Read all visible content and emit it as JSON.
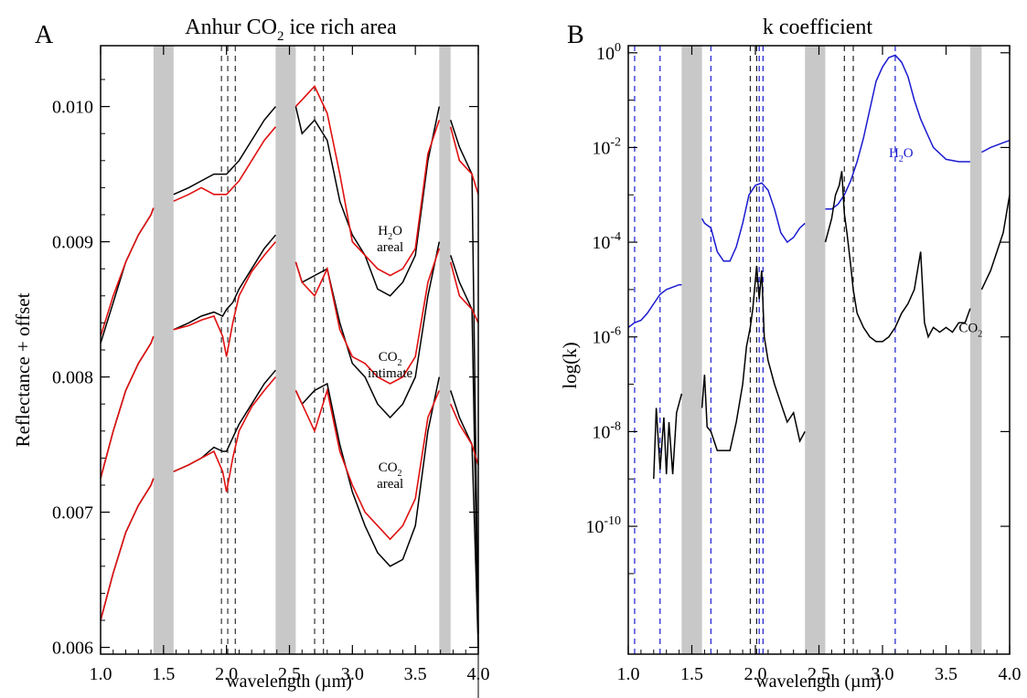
{
  "chart_data": [
    {
      "type": "line",
      "panel_letter": "A",
      "title_main": "Anhur CO",
      "title_sub": "2",
      "title_rest": " ice rich area",
      "xlabel": "wavelength (µm)",
      "ylabel": "Reflectance + offset",
      "xlim": [
        1.0,
        4.0
      ],
      "ylim": [
        0.00595,
        0.01045
      ],
      "xticks": [
        1.0,
        1.5,
        2.0,
        2.5,
        3.0,
        3.5,
        4.0
      ],
      "xtick_labels": [
        "1.0",
        "1.5",
        "2.0",
        "2.5",
        "3.0",
        "3.5",
        "4.0"
      ],
      "yticks": [
        0.006,
        0.007,
        0.008,
        0.009,
        0.01
      ],
      "ytick_labels": [
        "0.006",
        "0.007",
        "0.008",
        "0.009",
        "0.010"
      ],
      "grid": false,
      "masked_bands": [
        [
          1.42,
          1.58
        ],
        [
          2.39,
          2.55
        ],
        [
          3.69,
          3.78
        ]
      ],
      "dashed_lines": [
        1.96,
        2.01,
        2.07,
        2.7,
        2.77
      ],
      "colors": {
        "observed": "#000000",
        "model": "#e01010",
        "band": "#c8c8c8",
        "dashed": "#333333"
      },
      "series": [
        {
          "role": "observed",
          "group": "H2O areal",
          "x": [
            1.0,
            1.1,
            1.2,
            1.3,
            1.4,
            1.42,
            1.58,
            1.7,
            1.8,
            1.9,
            2.0,
            2.1,
            2.2,
            2.3,
            2.39,
            2.55,
            2.6,
            2.7,
            2.8,
            2.9,
            3.0,
            3.1,
            3.2,
            3.3,
            3.4,
            3.5,
            3.6,
            3.69,
            3.78,
            3.85,
            3.95,
            4.0
          ],
          "y": [
            0.00825,
            0.00855,
            0.00885,
            0.00905,
            0.0092,
            0.00925,
            0.00935,
            0.0094,
            0.00945,
            0.0095,
            0.0095,
            0.0096,
            0.00975,
            0.0099,
            0.01,
            0.01,
            0.0098,
            0.0099,
            0.00975,
            0.0093,
            0.00905,
            0.0089,
            0.00865,
            0.0086,
            0.0087,
            0.0089,
            0.0096,
            0.01,
            0.0099,
            0.0097,
            0.0095,
            0.0061
          ]
        },
        {
          "role": "model",
          "group": "H2O areal",
          "x": [
            1.0,
            1.1,
            1.2,
            1.3,
            1.4,
            1.42,
            1.58,
            1.7,
            1.8,
            1.9,
            2.0,
            2.1,
            2.2,
            2.3,
            2.39,
            2.55,
            2.6,
            2.7,
            2.8,
            2.9,
            3.0,
            3.1,
            3.2,
            3.3,
            3.4,
            3.5,
            3.6,
            3.69,
            3.78,
            3.85,
            3.95,
            4.0
          ],
          "y": [
            0.0083,
            0.0086,
            0.00885,
            0.00905,
            0.0092,
            0.00925,
            0.0093,
            0.00935,
            0.0094,
            0.00935,
            0.00935,
            0.00945,
            0.0096,
            0.00975,
            0.00985,
            0.01,
            0.01005,
            0.01015,
            0.00995,
            0.0095,
            0.009,
            0.0089,
            0.0088,
            0.00875,
            0.0088,
            0.00895,
            0.00965,
            0.0099,
            0.00985,
            0.0096,
            0.0095,
            0.00935
          ]
        },
        {
          "role": "observed",
          "group": "CO2 intimate",
          "x": [
            1.0,
            1.1,
            1.2,
            1.3,
            1.4,
            1.42,
            1.58,
            1.7,
            1.8,
            1.9,
            1.97,
            2.0,
            2.05,
            2.1,
            2.2,
            2.3,
            2.39,
            2.55,
            2.6,
            2.7,
            2.8,
            2.9,
            3.0,
            3.1,
            3.2,
            3.3,
            3.4,
            3.5,
            3.6,
            3.69,
            3.78,
            3.85,
            3.95,
            4.0
          ],
          "y": [
            0.00725,
            0.0076,
            0.0079,
            0.0081,
            0.00825,
            0.0083,
            0.00835,
            0.0084,
            0.00845,
            0.00848,
            0.00845,
            0.0085,
            0.00855,
            0.00865,
            0.0088,
            0.00895,
            0.00905,
            0.00885,
            0.0087,
            0.00875,
            0.0088,
            0.0084,
            0.0081,
            0.008,
            0.0078,
            0.0077,
            0.0078,
            0.008,
            0.0086,
            0.009,
            0.0089,
            0.0087,
            0.0085,
            0.006
          ]
        },
        {
          "role": "model",
          "group": "CO2 intimate",
          "x": [
            1.0,
            1.1,
            1.2,
            1.3,
            1.4,
            1.42,
            1.58,
            1.7,
            1.8,
            1.9,
            1.97,
            2.0,
            2.05,
            2.1,
            2.2,
            2.3,
            2.39,
            2.55,
            2.6,
            2.7,
            2.8,
            2.9,
            3.0,
            3.1,
            3.2,
            3.3,
            3.4,
            3.5,
            3.6,
            3.69,
            3.78,
            3.85,
            3.95,
            4.0
          ],
          "y": [
            0.00725,
            0.0076,
            0.0079,
            0.0081,
            0.00825,
            0.0083,
            0.00835,
            0.00838,
            0.00842,
            0.00845,
            0.0083,
            0.00815,
            0.0084,
            0.0086,
            0.00878,
            0.0089,
            0.009,
            0.00885,
            0.0087,
            0.0086,
            0.0088,
            0.00835,
            0.00815,
            0.0081,
            0.008,
            0.00795,
            0.008,
            0.00815,
            0.0087,
            0.00895,
            0.00885,
            0.0086,
            0.0085,
            0.0084
          ]
        },
        {
          "role": "observed",
          "group": "CO2 areal",
          "x": [
            1.0,
            1.1,
            1.2,
            1.3,
            1.4,
            1.42,
            1.58,
            1.7,
            1.8,
            1.9,
            1.97,
            2.0,
            2.05,
            2.1,
            2.2,
            2.3,
            2.39,
            2.55,
            2.6,
            2.7,
            2.8,
            2.9,
            3.0,
            3.1,
            3.2,
            3.3,
            3.4,
            3.5,
            3.6,
            3.69,
            3.78,
            3.85,
            3.95,
            4.0
          ],
          "y": [
            0.0062,
            0.00655,
            0.00685,
            0.00705,
            0.0072,
            0.00725,
            0.0073,
            0.00735,
            0.0074,
            0.00748,
            0.00745,
            0.00745,
            0.00755,
            0.00765,
            0.0078,
            0.00795,
            0.00805,
            0.0079,
            0.0078,
            0.0079,
            0.00795,
            0.0075,
            0.00715,
            0.0069,
            0.0067,
            0.0066,
            0.00665,
            0.0069,
            0.0076,
            0.008,
            0.0079,
            0.0077,
            0.0075,
            0.006
          ]
        },
        {
          "role": "model",
          "group": "CO2 areal",
          "x": [
            1.0,
            1.1,
            1.2,
            1.3,
            1.4,
            1.42,
            1.58,
            1.7,
            1.8,
            1.9,
            1.97,
            2.0,
            2.05,
            2.1,
            2.2,
            2.3,
            2.39,
            2.55,
            2.6,
            2.7,
            2.8,
            2.9,
            3.0,
            3.1,
            3.2,
            3.3,
            3.4,
            3.5,
            3.6,
            3.69,
            3.78,
            3.85,
            3.95,
            4.0
          ],
          "y": [
            0.0062,
            0.00655,
            0.00685,
            0.00705,
            0.0072,
            0.00725,
            0.0073,
            0.00735,
            0.0074,
            0.00745,
            0.0073,
            0.00715,
            0.0074,
            0.0076,
            0.00778,
            0.0079,
            0.008,
            0.0079,
            0.0078,
            0.0076,
            0.0079,
            0.00745,
            0.0072,
            0.007,
            0.0069,
            0.0068,
            0.0069,
            0.0071,
            0.0077,
            0.0079,
            0.0078,
            0.00765,
            0.0075,
            0.00735
          ]
        }
      ],
      "annotations": [
        {
          "main": "H",
          "sub": "2",
          "rest": "O",
          "line2": "areal",
          "x": 3.3,
          "y": 0.00905
        },
        {
          "main": "CO",
          "sub": "2",
          "rest": "",
          "line2": "intimate",
          "x": 3.3,
          "y": 0.00812
        },
        {
          "main": "CO",
          "sub": "2",
          "rest": "",
          "line2": "areal",
          "x": 3.3,
          "y": 0.0073
        }
      ]
    },
    {
      "type": "line",
      "panel_letter": "B",
      "title_main": "k coefficient",
      "xlabel": "wavelength (µm)",
      "ylabel": "log(k)",
      "yscale": "log",
      "xlim": [
        1.0,
        4.0
      ],
      "ylim_log10": [
        -12.7,
        0.15
      ],
      "xticks": [
        1.0,
        1.5,
        2.0,
        2.5,
        3.0,
        3.5,
        4.0
      ],
      "xtick_labels": [
        "1.0",
        "1.5",
        "2.0",
        "2.5",
        "3.0",
        "3.5",
        "4.0"
      ],
      "yticks_log10": [
        -10,
        -8,
        -6,
        -4,
        -2,
        0
      ],
      "ytick_base": "10",
      "ytick_exponents": [
        "-10",
        "-8",
        "-6",
        "-4",
        "-2",
        "0"
      ],
      "grid": false,
      "masked_bands": [
        [
          1.42,
          1.58
        ],
        [
          2.39,
          2.55
        ],
        [
          3.69,
          3.78
        ]
      ],
      "dashed_lines_blue": [
        1.05,
        1.25,
        1.65,
        2.03,
        2.06,
        3.1
      ],
      "dashed_lines_black": [
        1.96,
        2.01,
        2.7,
        2.77
      ],
      "colors": {
        "h2o": "#1a1ad0",
        "co2": "#000000",
        "band": "#c8c8c8"
      },
      "series": [
        {
          "name_main": "H",
          "name_sub": "2",
          "name_rest": "O",
          "label_x": 3.05,
          "label_log10k": -2.2,
          "color": "#1a1ad0",
          "x": [
            1.0,
            1.05,
            1.1,
            1.15,
            1.2,
            1.25,
            1.3,
            1.35,
            1.4,
            1.42,
            1.58,
            1.6,
            1.65,
            1.7,
            1.75,
            1.8,
            1.85,
            1.9,
            1.95,
            2.0,
            2.05,
            2.1,
            2.15,
            2.2,
            2.25,
            2.3,
            2.35,
            2.39,
            2.55,
            2.6,
            2.65,
            2.7,
            2.75,
            2.8,
            2.85,
            2.9,
            2.95,
            3.0,
            3.05,
            3.1,
            3.15,
            3.2,
            3.25,
            3.3,
            3.35,
            3.4,
            3.5,
            3.6,
            3.69,
            3.78,
            3.85,
            3.95,
            4.0
          ],
          "log10k": [
            -5.8,
            -5.7,
            -5.65,
            -5.5,
            -5.3,
            -5.1,
            -5.0,
            -4.95,
            -4.9,
            -4.9,
            -3.5,
            -3.6,
            -3.7,
            -4.2,
            -4.4,
            -4.4,
            -4.1,
            -3.6,
            -3.0,
            -2.8,
            -2.75,
            -2.9,
            -3.3,
            -3.8,
            -4.0,
            -3.9,
            -3.7,
            -3.6,
            -3.3,
            -3.3,
            -3.2,
            -3.0,
            -2.7,
            -2.3,
            -1.8,
            -1.2,
            -0.6,
            -0.3,
            -0.1,
            -0.05,
            -0.2,
            -0.5,
            -1.0,
            -1.4,
            -1.7,
            -2.0,
            -2.25,
            -2.3,
            -2.3,
            -2.1,
            -2.0,
            -1.9,
            -1.85
          ]
        },
        {
          "name_main": "CO",
          "name_sub": "2",
          "name_rest": "",
          "label_x": 3.6,
          "label_log10k": -5.9,
          "color": "#000000",
          "x": [
            1.2,
            1.22,
            1.25,
            1.28,
            1.3,
            1.32,
            1.35,
            1.38,
            1.4,
            1.42,
            1.58,
            1.6,
            1.62,
            1.65,
            1.7,
            1.75,
            1.8,
            1.85,
            1.9,
            1.93,
            1.96,
            1.98,
            2.01,
            2.03,
            2.05,
            2.07,
            2.1,
            2.15,
            2.2,
            2.25,
            2.3,
            2.35,
            2.39,
            2.55,
            2.6,
            2.63,
            2.66,
            2.68,
            2.7,
            2.72,
            2.75,
            2.77,
            2.8,
            2.85,
            2.9,
            2.95,
            3.0,
            3.05,
            3.1,
            3.15,
            3.2,
            3.25,
            3.3,
            3.33,
            3.36,
            3.4,
            3.45,
            3.5,
            3.55,
            3.6,
            3.65,
            3.69,
            3.78,
            3.85,
            3.9,
            3.95,
            4.0
          ],
          "log10k": [
            -9.0,
            -7.5,
            -8.8,
            -7.7,
            -8.9,
            -7.8,
            -8.9,
            -7.6,
            -7.4,
            -7.2,
            -7.5,
            -6.8,
            -7.9,
            -8.0,
            -8.4,
            -8.4,
            -8.4,
            -7.8,
            -7.0,
            -6.2,
            -5.8,
            -5.4,
            -4.5,
            -5.2,
            -4.6,
            -6.0,
            -6.5,
            -7.0,
            -7.4,
            -7.8,
            -7.6,
            -8.2,
            -8.0,
            -4.0,
            -3.5,
            -3.0,
            -2.8,
            -2.5,
            -3.4,
            -3.8,
            -4.5,
            -5.0,
            -5.5,
            -5.8,
            -6.0,
            -6.1,
            -6.1,
            -6.0,
            -5.8,
            -5.5,
            -5.3,
            -5.0,
            -4.2,
            -5.7,
            -6.0,
            -5.8,
            -5.9,
            -5.8,
            -5.9,
            -5.7,
            -5.7,
            -5.4,
            -5.0,
            -4.6,
            -4.2,
            -3.8,
            -3.0
          ]
        }
      ]
    }
  ]
}
